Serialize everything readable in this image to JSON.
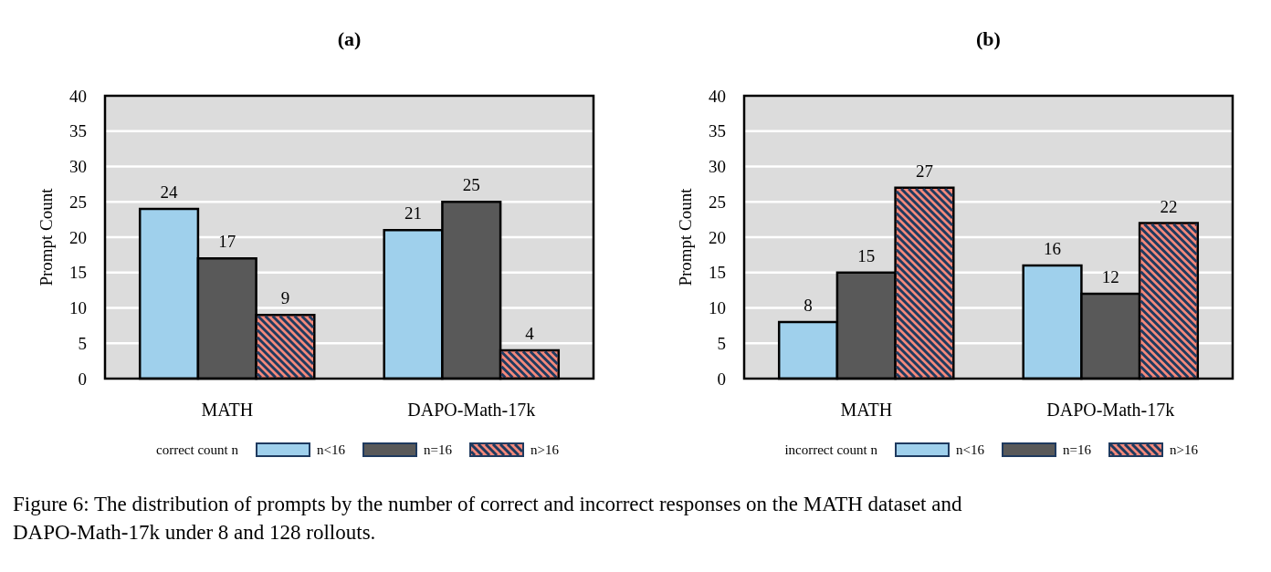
{
  "chart_data": [
    {
      "type": "bar",
      "title": "(a)",
      "ylabel": "Prompt Count",
      "categories": [
        "MATH",
        "DAPO-Math-17k"
      ],
      "ylim": [
        0,
        40
      ],
      "yticks": [
        0,
        5,
        10,
        15,
        20,
        25,
        30,
        35,
        40
      ],
      "grid": "y",
      "legend": "bottom",
      "legend_title": "correct count n",
      "data_labels": true,
      "series": [
        {
          "name": "n<16",
          "color": "#9fd0ec",
          "values": [
            24,
            21
          ]
        },
        {
          "name": "n=16",
          "color": "#595959",
          "values": [
            17,
            25
          ]
        },
        {
          "name": "n>16",
          "color": "#f4897b",
          "values": [
            9,
            4
          ]
        }
      ],
      "annotations": [
        "Figure 6: The distribution of prompts by the number of correct and incorrect responses on the MATH dataset and DAPO-Math-17k under 8 and 128 rollouts."
      ]
    },
    {
      "type": "bar",
      "title": "(b)",
      "ylabel": "Prompt Count",
      "categories": [
        "MATH",
        "DAPO-Math-17k"
      ],
      "ylim": [
        0,
        40
      ],
      "yticks": [
        0,
        5,
        10,
        15,
        20,
        25,
        30,
        35,
        40
      ],
      "grid": "y",
      "legend": "bottom",
      "legend_title": "incorrect count n",
      "data_labels": true,
      "series": [
        {
          "name": "n<16",
          "color": "#9fd0ec",
          "values": [
            8,
            16
          ]
        },
        {
          "name": "n=16",
          "color": "#595959",
          "values": [
            15,
            12
          ]
        },
        {
          "name": "n>16",
          "color": "#f4897b",
          "values": [
            27,
            22
          ]
        }
      ]
    }
  ]
}
